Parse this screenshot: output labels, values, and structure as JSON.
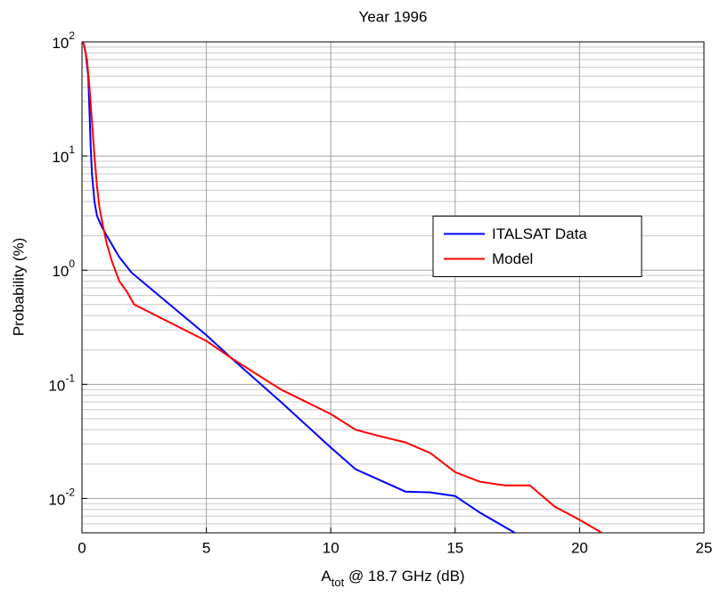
{
  "chart_data": {
    "type": "line",
    "title": "Year 1996",
    "xlabel": [
      "A",
      "tot",
      " @ 18.7 GHz (dB)"
    ],
    "ylabel": "Probability (%)",
    "xlim": [
      0,
      25
    ],
    "xticks": [
      0,
      5,
      10,
      15,
      20,
      25
    ],
    "ylim": [
      0.005,
      100
    ],
    "yscale": "log",
    "yticks": [
      {
        "value": 0.01,
        "label": "10^-2"
      },
      {
        "value": 0.1,
        "label": "10^-1"
      },
      {
        "value": 1,
        "label": "10^0"
      },
      {
        "value": 10,
        "label": "10^1"
      },
      {
        "value": 100,
        "label": "10^2"
      }
    ],
    "grid": true,
    "legend": "east",
    "series": [
      {
        "name": "ITALSAT Data",
        "color": "#0000ff",
        "x": [
          0.05,
          0.15,
          0.25,
          0.3,
          0.35,
          0.4,
          0.5,
          0.6,
          0.8,
          1.0,
          1.5,
          2.0,
          5,
          6,
          8,
          10,
          11,
          13,
          14,
          15,
          16,
          17.2,
          17.4
        ],
        "values": [
          100,
          80,
          50,
          25,
          12,
          7,
          4,
          3,
          2.4,
          2.0,
          1.3,
          0.95,
          0.27,
          0.17,
          0.07,
          0.028,
          0.018,
          0.0115,
          0.0113,
          0.0105,
          0.0075,
          0.0053,
          0.005
        ]
      },
      {
        "name": "Model",
        "color": "#ff0000",
        "x": [
          0.05,
          0.2,
          0.3,
          0.4,
          0.5,
          0.6,
          0.7,
          0.85,
          1.0,
          1.2,
          1.5,
          1.8,
          2.1,
          5,
          6,
          8,
          10,
          11,
          12,
          13,
          14,
          15,
          16,
          17,
          18,
          19,
          20,
          20.9
        ],
        "values": [
          100,
          70,
          40,
          20,
          10,
          5.5,
          3.6,
          2.4,
          1.7,
          1.2,
          0.8,
          0.65,
          0.5,
          0.24,
          0.17,
          0.09,
          0.055,
          0.04,
          0.035,
          0.031,
          0.025,
          0.017,
          0.014,
          0.013,
          0.013,
          0.0085,
          0.0065,
          0.005
        ]
      }
    ]
  }
}
